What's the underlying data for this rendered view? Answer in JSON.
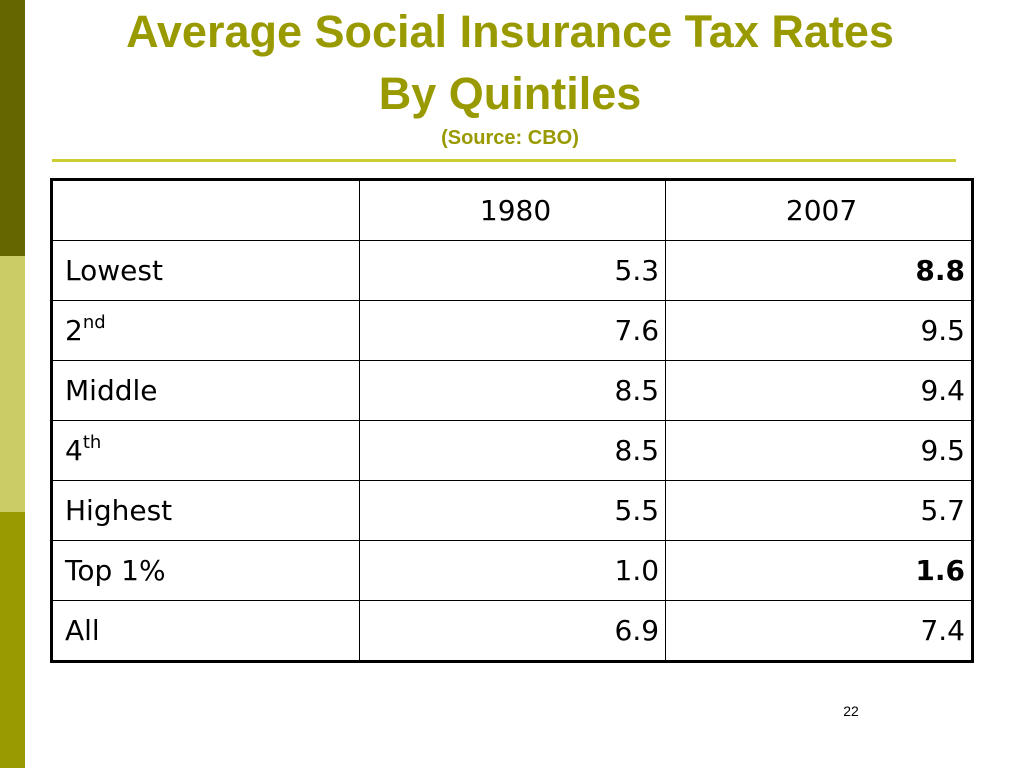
{
  "slide": {
    "title_line1": "Average Social Insurance Tax Rates",
    "title_line2": "By Quintiles",
    "subtitle": "(Source: CBO)",
    "page_number": "22"
  },
  "colors": {
    "title": "#999900",
    "stripe_dark": "#666600",
    "stripe_light": "#cccc66",
    "stripe_olive": "#999900",
    "rule": "#cccc33"
  },
  "table": {
    "headers": [
      "",
      "1980",
      "2007"
    ],
    "rows": [
      {
        "label": "Lowest",
        "sup": "",
        "v1980": "5.3",
        "v2007": "8.8",
        "bold2007": true
      },
      {
        "label": "2",
        "sup": "nd",
        "v1980": "7.6",
        "v2007": "9.5",
        "bold2007": false
      },
      {
        "label": "Middle",
        "sup": "",
        "v1980": "8.5",
        "v2007": "9.4",
        "bold2007": false
      },
      {
        "label": "4",
        "sup": "th",
        "v1980": "8.5",
        "v2007": "9.5",
        "bold2007": false
      },
      {
        "label": "Highest",
        "sup": "",
        "v1980": "5.5",
        "v2007": "5.7",
        "bold2007": false
      },
      {
        "label": "Top 1%",
        "sup": "",
        "v1980": "1.0",
        "v2007": "1.6",
        "bold2007": true
      },
      {
        "label": "All",
        "sup": "",
        "v1980": "6.9",
        "v2007": "7.4",
        "bold2007": false
      }
    ]
  }
}
